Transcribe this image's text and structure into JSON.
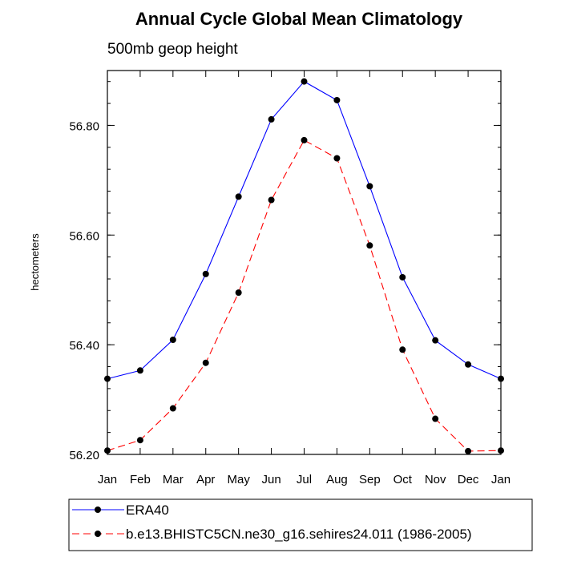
{
  "chart_data": {
    "type": "line",
    "title": "Annual Cycle Global Mean Climatology",
    "subtitle": "500mb geop height",
    "xlabel": "",
    "ylabel": "hectometers",
    "categories": [
      "Jan",
      "Feb",
      "Mar",
      "Apr",
      "May",
      "Jun",
      "Jul",
      "Aug",
      "Sep",
      "Oct",
      "Nov",
      "Dec",
      "Jan"
    ],
    "ylim": [
      56.2,
      56.9
    ],
    "yticks": [
      56.2,
      56.4,
      56.6,
      56.8
    ],
    "ytick_labels": [
      "56.20",
      "56.40",
      "56.60",
      "56.80"
    ],
    "grid": false,
    "legend_position": "bottom",
    "series": [
      {
        "name": "ERA40",
        "color": "#0000ff",
        "line_style": "solid",
        "marker": "filled-circle",
        "values": [
          56.338,
          56.353,
          56.409,
          56.529,
          56.67,
          56.811,
          56.88,
          56.846,
          56.689,
          56.523,
          56.408,
          56.364,
          56.338
        ]
      },
      {
        "name": "b.e13.BHISTC5CN.ne30_g16.sehires24.011 (1986-2005)",
        "color": "#ff0000",
        "line_style": "dashed",
        "marker": "filled-circle",
        "values": [
          56.207,
          56.226,
          56.284,
          56.367,
          56.495,
          56.664,
          56.773,
          56.74,
          56.581,
          56.391,
          56.265,
          56.206,
          56.207
        ]
      }
    ]
  }
}
